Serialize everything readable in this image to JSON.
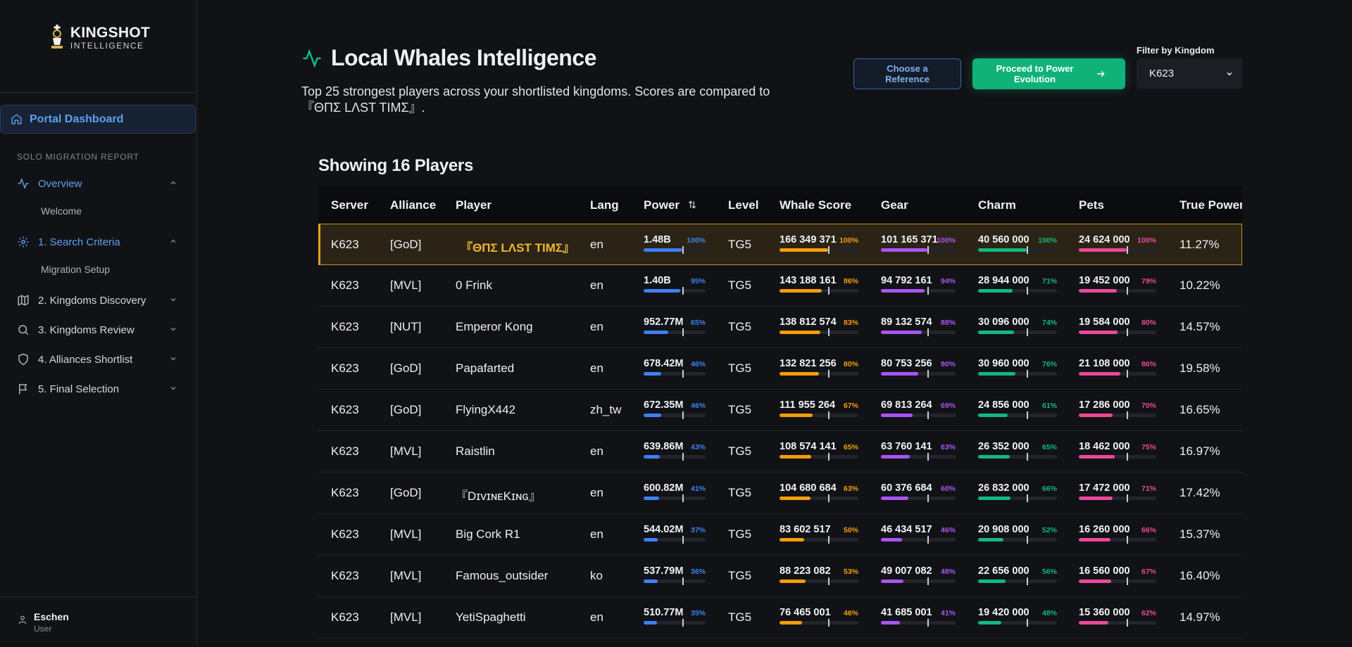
{
  "sidebar": {
    "logo": {
      "title": "KINGSHOT",
      "subtitle": "INTELLIGENCE"
    },
    "portal": "Portal Dashboard",
    "section_title": "SOLO MIGRATION REPORT",
    "items": [
      {
        "label": "Overview",
        "icon": "activity-icon",
        "expanded": true
      },
      {
        "label": "1. Search Criteria",
        "icon": "gear-icon",
        "expanded": true
      },
      {
        "label": "2. Kingdoms Discovery",
        "icon": "map-icon",
        "expanded": false
      },
      {
        "label": "3. Kingdoms Review",
        "icon": "search-icon",
        "expanded": false
      },
      {
        "label": "4. Alliances Shortlist",
        "icon": "shield-icon",
        "expanded": false
      },
      {
        "label": "5. Final Selection",
        "icon": "flag-icon",
        "expanded": false
      }
    ],
    "subitems": {
      "overview": "Welcome",
      "search": "Migration Setup"
    },
    "user": {
      "name": "Eschen",
      "role": "User"
    }
  },
  "header": {
    "title": "Local Whales Intelligence",
    "description": "Top 25 strongest players across your shortlisted kingdoms. Scores are compared to 『ΘΠΣ LΛST TIMΣ』.",
    "choose_reference": "Choose a Reference",
    "proceed": "Proceed to Power Evolution",
    "filter_label": "Filter by Kingdom",
    "filter_value": "K623"
  },
  "showing": "Showing 16 Players",
  "columns": [
    "Server",
    "Alliance",
    "Player",
    "Lang",
    "Power",
    "Level",
    "Whale Score",
    "Gear",
    "Charm",
    "Pets",
    "True Power"
  ],
  "colors": {
    "power": "#3b82f6",
    "whale": "#f59e0b",
    "gear": "#a855f7",
    "charm": "#10b981",
    "pets": "#ec4899",
    "accent": "#10b27a",
    "highlight": "#e0a324"
  },
  "rows": [
    {
      "server": "K623",
      "alliance": "[GoD]",
      "player": "『ΘΠΣ LΛST TIMΣ』",
      "lang": "en",
      "power": "1.48B",
      "power_pct": "100%",
      "level": "TG5",
      "whale": "166 349 371",
      "whale_pct": "100%",
      "gear": "101 165 371",
      "gear_pct": "100%",
      "charm": "40 560 000",
      "charm_pct": "100%",
      "pets": "24 624 000",
      "pets_pct": "100%",
      "true_power": "11.27%",
      "highlight": true
    },
    {
      "server": "K623",
      "alliance": "[MVL]",
      "player": "0 Frink",
      "lang": "en",
      "power": "1.40B",
      "power_pct": "95%",
      "level": "TG5",
      "whale": "143 188 161",
      "whale_pct": "86%",
      "gear": "94 792 161",
      "gear_pct": "94%",
      "charm": "28 944 000",
      "charm_pct": "71%",
      "pets": "19 452 000",
      "pets_pct": "79%",
      "true_power": "10.22%"
    },
    {
      "server": "K623",
      "alliance": "[NUT]",
      "player": "Emperor Kong",
      "lang": "en",
      "power": "952.77M",
      "power_pct": "65%",
      "level": "TG5",
      "whale": "138 812 574",
      "whale_pct": "83%",
      "gear": "89 132 574",
      "gear_pct": "88%",
      "charm": "30 096 000",
      "charm_pct": "74%",
      "pets": "19 584 000",
      "pets_pct": "80%",
      "true_power": "14.57%"
    },
    {
      "server": "K623",
      "alliance": "[GoD]",
      "player": "Papafarted",
      "lang": "en",
      "power": "678.42M",
      "power_pct": "46%",
      "level": "TG5",
      "whale": "132 821 256",
      "whale_pct": "80%",
      "gear": "80 753 256",
      "gear_pct": "80%",
      "charm": "30 960 000",
      "charm_pct": "76%",
      "pets": "21 108 000",
      "pets_pct": "86%",
      "true_power": "19.58%"
    },
    {
      "server": "K623",
      "alliance": "[GoD]",
      "player": "FlyingX442",
      "lang": "zh_tw",
      "power": "672.35M",
      "power_pct": "46%",
      "level": "TG5",
      "whale": "111 955 264",
      "whale_pct": "67%",
      "gear": "69 813 264",
      "gear_pct": "69%",
      "charm": "24 856 000",
      "charm_pct": "61%",
      "pets": "17 286 000",
      "pets_pct": "70%",
      "true_power": "16.65%"
    },
    {
      "server": "K623",
      "alliance": "[MVL]",
      "player": "Raistlin",
      "lang": "en",
      "power": "639.86M",
      "power_pct": "43%",
      "level": "TG5",
      "whale": "108 574 141",
      "whale_pct": "65%",
      "gear": "63 760 141",
      "gear_pct": "63%",
      "charm": "26 352 000",
      "charm_pct": "65%",
      "pets": "18 462 000",
      "pets_pct": "75%",
      "true_power": "16.97%"
    },
    {
      "server": "K623",
      "alliance": "[GoD]",
      "player": "『DɪᴠɪɴᴇKɪɴɢ』",
      "lang": "en",
      "power": "600.82M",
      "power_pct": "41%",
      "level": "TG5",
      "whale": "104 680 684",
      "whale_pct": "63%",
      "gear": "60 376 684",
      "gear_pct": "60%",
      "charm": "26 832 000",
      "charm_pct": "66%",
      "pets": "17 472 000",
      "pets_pct": "71%",
      "true_power": "17.42%"
    },
    {
      "server": "K623",
      "alliance": "[MVL]",
      "player": "Big Cork R1",
      "lang": "en",
      "power": "544.02M",
      "power_pct": "37%",
      "level": "TG5",
      "whale": "83 602 517",
      "whale_pct": "50%",
      "gear": "46 434 517",
      "gear_pct": "46%",
      "charm": "20 908 000",
      "charm_pct": "52%",
      "pets": "16 260 000",
      "pets_pct": "66%",
      "true_power": "15.37%"
    },
    {
      "server": "K623",
      "alliance": "[MVL]",
      "player": "Famous_outsider",
      "lang": "ko",
      "power": "537.79M",
      "power_pct": "36%",
      "level": "TG5",
      "whale": "88 223 082",
      "whale_pct": "53%",
      "gear": "49 007 082",
      "gear_pct": "48%",
      "charm": "22 656 000",
      "charm_pct": "56%",
      "pets": "16 560 000",
      "pets_pct": "67%",
      "true_power": "16.40%"
    },
    {
      "server": "K623",
      "alliance": "[MVL]",
      "player": "YetiSpaghetti",
      "lang": "en",
      "power": "510.77M",
      "power_pct": "35%",
      "level": "TG5",
      "whale": "76 465 001",
      "whale_pct": "46%",
      "gear": "41 685 001",
      "gear_pct": "41%",
      "charm": "19 420 000",
      "charm_pct": "48%",
      "pets": "15 360 000",
      "pets_pct": "62%",
      "true_power": "14.97%"
    }
  ]
}
